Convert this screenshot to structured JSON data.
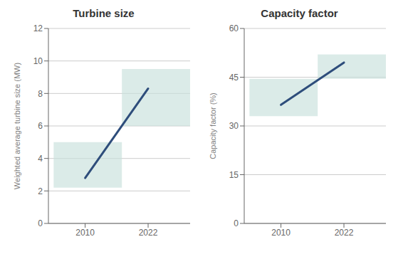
{
  "chart_data": [
    {
      "type": "line",
      "title": "Turbine size",
      "y_label": "Weighted average turbine size (MW)",
      "x": [
        2010,
        2022
      ],
      "values": [
        2.8,
        8.3
      ],
      "color": "#2e4d7b",
      "xlim": [
        2003,
        2030
      ],
      "xticks": [
        2010,
        2022
      ],
      "ylim": [
        0,
        12
      ],
      "yticks": [
        0,
        2,
        4,
        6,
        8,
        10,
        12
      ],
      "grid": true,
      "bands": [
        {
          "x": [
            2004,
            2017
          ],
          "y": [
            2.2,
            5.0
          ],
          "color": "#c8e0dc"
        },
        {
          "x": [
            2017,
            2030
          ],
          "y": [
            6.0,
            9.5
          ],
          "color": "#c8e0dc"
        }
      ]
    },
    {
      "type": "line",
      "title": "Capacity factor",
      "y_label": "Capacity factor (%)",
      "x": [
        2010,
        2022
      ],
      "values": [
        36.5,
        49.5
      ],
      "color": "#2e4d7b",
      "xlim": [
        2003,
        2030
      ],
      "xticks": [
        2010,
        2022
      ],
      "ylim": [
        0,
        60
      ],
      "yticks": [
        0,
        15,
        30,
        45,
        60
      ],
      "grid": true,
      "bands": [
        {
          "x": [
            2004,
            2017
          ],
          "y": [
            33.0,
            44.5
          ],
          "color": "#c8e0dc"
        },
        {
          "x": [
            2017,
            2030
          ],
          "y": [
            44.5,
            52.0
          ],
          "color": "#c8e0dc"
        }
      ]
    }
  ]
}
